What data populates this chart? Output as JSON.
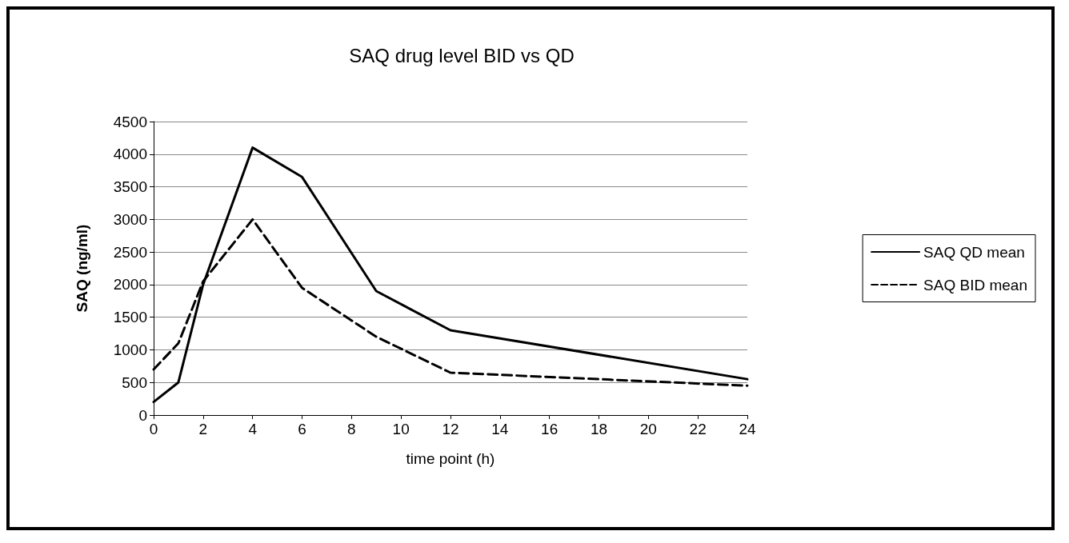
{
  "chart_data": {
    "type": "line",
    "title": "SAQ drug level BID vs QD",
    "xlabel": "time point (h)",
    "ylabel": "SAQ (ng/ml)",
    "xlim": [
      0,
      24
    ],
    "xticks": [
      0,
      2,
      4,
      6,
      8,
      10,
      12,
      14,
      16,
      18,
      20,
      22,
      24
    ],
    "ylim": [
      0,
      4500
    ],
    "yticks": [
      0,
      500,
      1000,
      1500,
      2000,
      2500,
      3000,
      3500,
      4000,
      4500
    ],
    "grid": "y",
    "legend": "right",
    "marker": "none",
    "series": [
      {
        "name": "SAQ QD mean",
        "color": "#000000",
        "line_style": "solid",
        "x": [
          0,
          1,
          2,
          4,
          6,
          9,
          12,
          24
        ],
        "values": [
          200,
          500,
          2000,
          4100,
          3650,
          1900,
          1300,
          550
        ]
      },
      {
        "name": "SAQ BID mean",
        "color": "#000000",
        "line_style": "dashed",
        "x": [
          0,
          1,
          2,
          4,
          6,
          9,
          12,
          24
        ],
        "values": [
          700,
          1100,
          2050,
          3000,
          1950,
          1200,
          650,
          450
        ]
      }
    ]
  }
}
